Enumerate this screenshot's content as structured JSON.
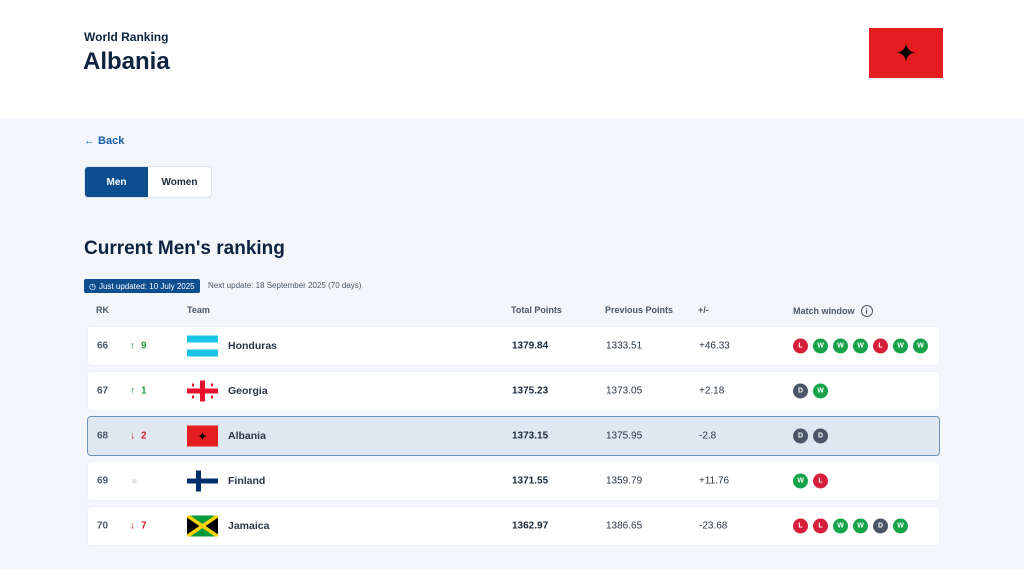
{
  "header": {
    "subtitle": "World Ranking",
    "title": "Albania"
  },
  "back": "← Back",
  "tabs": [
    "Men",
    "Women"
  ],
  "section_title": "Current Men's ranking",
  "updated": "Just updated: 10 July 2025",
  "next_update": "Next update: 18 September 2025 (70 days)",
  "columns": [
    "RK",
    "Team",
    "Total Points",
    "Previous Points",
    "+/-",
    "Match window"
  ],
  "rows": [
    {
      "rank": "66",
      "dir": "up",
      "move": "9",
      "team": "Honduras",
      "flag": "honduras",
      "total": "1379.84",
      "prev": "1333.51",
      "diff": "+46.33",
      "results": [
        "L",
        "W",
        "W",
        "W",
        "L",
        "W",
        "W"
      ]
    },
    {
      "rank": "67",
      "dir": "up",
      "move": "1",
      "team": "Georgia",
      "flag": "georgia",
      "total": "1375.23",
      "prev": "1373.05",
      "diff": "+2.18",
      "results": [
        "D",
        "W"
      ]
    },
    {
      "rank": "68",
      "dir": "down",
      "move": "2",
      "team": "Albania",
      "flag": "albania",
      "total": "1373.15",
      "prev": "1375.95",
      "diff": "-2.8",
      "results": [
        "D",
        "D"
      ],
      "selected": true
    },
    {
      "rank": "69",
      "dir": "none",
      "move": "",
      "team": "Finland",
      "flag": "finland",
      "total": "1371.55",
      "prev": "1359.79",
      "diff": "+11.76",
      "results": [
        "W",
        "L"
      ]
    },
    {
      "rank": "70",
      "dir": "down",
      "move": "7",
      "team": "Jamaica",
      "flag": "jamaica",
      "total": "1362.97",
      "prev": "1386.65",
      "diff": "-23.68",
      "results": [
        "L",
        "L",
        "W",
        "W",
        "D",
        "W"
      ]
    }
  ]
}
